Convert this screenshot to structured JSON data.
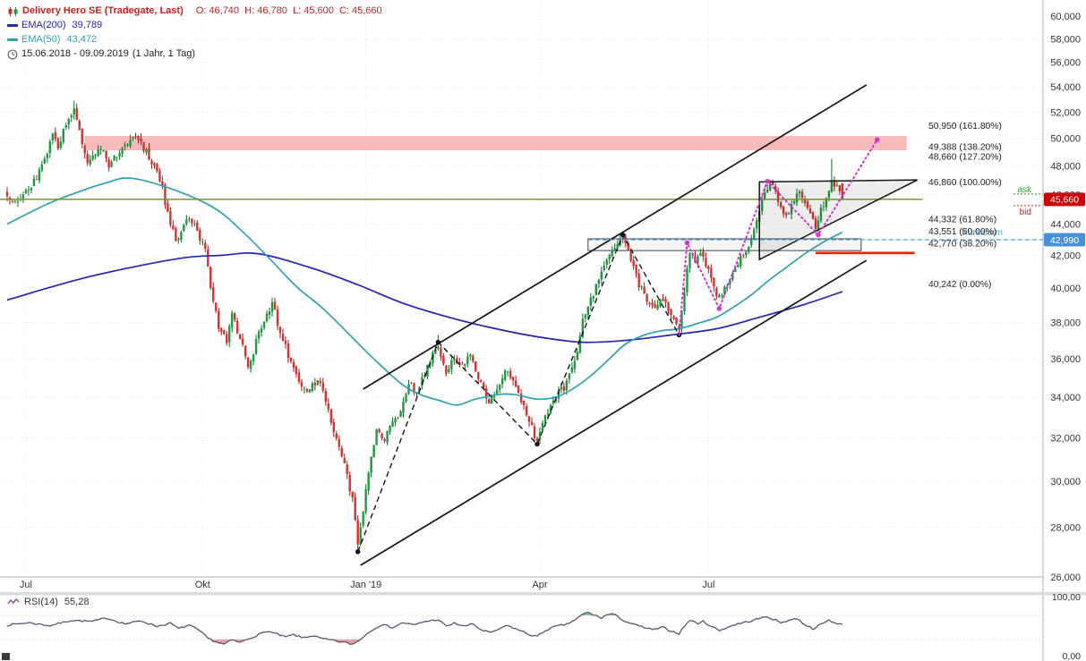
{
  "header": {
    "title": "Delivery Hero SE (Tradegate, Last)",
    "ohlc_text": "O: 46,740  H: 46,780  L: 45,600  C: 45,660",
    "ema200_label": "EMA(200)",
    "ema200_value": "39,789",
    "ema50_label": "EMA(50)",
    "ema50_value": "43,472",
    "period": "15.06.2018 - 09.09.2019",
    "period_detail": "(1 Jahr, 1 Tag)"
  },
  "colors": {
    "title_red": "#cc2020",
    "up": "#1e9b3e",
    "up_dark": "#0c6f28",
    "down": "#d23430",
    "down_dark": "#9e1f1c",
    "ema200": "#2424b4",
    "ema50": "#2fa0b6",
    "band": "#f6bcbc",
    "price_line": "#7d9a2d",
    "projection": "#d433d4",
    "alarm": "#4aa0e8",
    "stop": "#ee2000",
    "badge_last": "#cc0000",
    "badge_alarm": "#4a90d9",
    "ask": "#2ca02c",
    "bid": "#cc2222",
    "rsi_line": "#565673",
    "rsi_over": "#93cb93",
    "rsi_under": "#e9a0a0",
    "channel": "#151515",
    "grid": "#ebebeb",
    "axis_text": "#333333"
  },
  "chart_data": {
    "type": "candlestick",
    "scale": "log",
    "title": "Delivery Hero SE (Tradegate, Last)",
    "interval": "1 Tag",
    "period": "15.06.2018 - 09.09.2019",
    "days_total": 312,
    "last_candle": {
      "o": 46.74,
      "h": 46.78,
      "l": 45.6,
      "c": 45.66
    },
    "x_ticks": [
      {
        "day": 7,
        "label": "Jul"
      },
      {
        "day": 73,
        "label": "Okt"
      },
      {
        "day": 134,
        "label": "Jan '19"
      },
      {
        "day": 199,
        "label": "Apr"
      },
      {
        "day": 262,
        "label": "Jul"
      }
    ],
    "y_ticks": [
      {
        "v": 60,
        "label": "60,000"
      },
      {
        "v": 58,
        "label": "58,000"
      },
      {
        "v": 56,
        "label": "56,000"
      },
      {
        "v": 54,
        "label": "54,000"
      },
      {
        "v": 52,
        "label": "52,000"
      },
      {
        "v": 50,
        "label": "50,000"
      },
      {
        "v": 48,
        "label": "48,000"
      },
      {
        "v": 46,
        "label": "46,000"
      },
      {
        "v": 44,
        "label": "44,000"
      },
      {
        "v": 42,
        "label": "42,000"
      },
      {
        "v": 40,
        "label": "40,000"
      },
      {
        "v": 38,
        "label": "38,000"
      },
      {
        "v": 36,
        "label": "36,000"
      },
      {
        "v": 34,
        "label": "34,000"
      },
      {
        "v": 32,
        "label": "32,000"
      },
      {
        "v": 30,
        "label": "30,000"
      },
      {
        "v": 28,
        "label": "28,000"
      },
      {
        "v": 26,
        "label": "26,000"
      }
    ],
    "price_path": [
      [
        0,
        46.1
      ],
      [
        3,
        45.3
      ],
      [
        6,
        45.9
      ],
      [
        9,
        46.5
      ],
      [
        12,
        47.6
      ],
      [
        15,
        49.0
      ],
      [
        17,
        50.3
      ],
      [
        19,
        49.5
      ],
      [
        22,
        50.9
      ],
      [
        25,
        52.2
      ],
      [
        27,
        50.4
      ],
      [
        30,
        48.2
      ],
      [
        33,
        48.9
      ],
      [
        35,
        49.3
      ],
      [
        38,
        48.0
      ],
      [
        41,
        48.7
      ],
      [
        44,
        49.4
      ],
      [
        47,
        50.2
      ],
      [
        49,
        50.0
      ],
      [
        52,
        49.0
      ],
      [
        55,
        48.0
      ],
      [
        58,
        46.4
      ],
      [
        60,
        44.6
      ],
      [
        63,
        42.9
      ],
      [
        66,
        43.8
      ],
      [
        68,
        44.4
      ],
      [
        71,
        43.6
      ],
      [
        74,
        42.2
      ],
      [
        76,
        40.0
      ],
      [
        79,
        37.8
      ],
      [
        82,
        36.9
      ],
      [
        84,
        38.4
      ],
      [
        87,
        37.2
      ],
      [
        90,
        35.4
      ],
      [
        93,
        36.9
      ],
      [
        96,
        38.1
      ],
      [
        99,
        39.2
      ],
      [
        102,
        37.4
      ],
      [
        105,
        36.2
      ],
      [
        109,
        34.8
      ],
      [
        113,
        34.3
      ],
      [
        116,
        35.0
      ],
      [
        119,
        33.9
      ],
      [
        123,
        31.9
      ],
      [
        126,
        30.7
      ],
      [
        129,
        29.2
      ],
      [
        131,
        27.3
      ],
      [
        133,
        28.6
      ],
      [
        135,
        30.4
      ],
      [
        138,
        32.3
      ],
      [
        141,
        32.0
      ],
      [
        144,
        32.7
      ],
      [
        147,
        33.3
      ],
      [
        150,
        34.7
      ],
      [
        153,
        34.2
      ],
      [
        156,
        35.3
      ],
      [
        159,
        36.3
      ],
      [
        161,
        36.8
      ],
      [
        164,
        35.3
      ],
      [
        167,
        36.0
      ],
      [
        170,
        35.6
      ],
      [
        173,
        36.2
      ],
      [
        176,
        35.1
      ],
      [
        180,
        33.7
      ],
      [
        183,
        34.4
      ],
      [
        186,
        35.5
      ],
      [
        189,
        34.8
      ],
      [
        192,
        33.9
      ],
      [
        195,
        32.8
      ],
      [
        198,
        31.8
      ],
      [
        201,
        33.1
      ],
      [
        204,
        33.9
      ],
      [
        208,
        34.5
      ],
      [
        211,
        35.4
      ],
      [
        213,
        36.3
      ],
      [
        215,
        38.3
      ],
      [
        218,
        39.3
      ],
      [
        221,
        40.5
      ],
      [
        224,
        41.6
      ],
      [
        227,
        42.5
      ],
      [
        230,
        43.1
      ],
      [
        233,
        41.8
      ],
      [
        236,
        40.2
      ],
      [
        239,
        39.4
      ],
      [
        242,
        38.7
      ],
      [
        245,
        39.3
      ],
      [
        248,
        38.5
      ],
      [
        251,
        37.6
      ],
      [
        253,
        39.9
      ],
      [
        255,
        42.1
      ],
      [
        257,
        41.7
      ],
      [
        259,
        42.2
      ],
      [
        262,
        41.1
      ],
      [
        265,
        39.4
      ],
      [
        268,
        39.9
      ],
      [
        271,
        41.0
      ],
      [
        274,
        41.9
      ],
      [
        277,
        42.7
      ],
      [
        280,
        44.2
      ],
      [
        283,
        46.2
      ],
      [
        285,
        46.8
      ],
      [
        288,
        45.7
      ],
      [
        291,
        44.5
      ],
      [
        294,
        45.4
      ],
      [
        296,
        46.2
      ],
      [
        299,
        45.0
      ],
      [
        302,
        43.7
      ],
      [
        304,
        44.9
      ],
      [
        307,
        46.2
      ],
      [
        308,
        46.9
      ],
      [
        310,
        46.4
      ],
      [
        312,
        45.66
      ]
    ],
    "wick_overrides": [
      {
        "day": 25,
        "h": 52.9
      },
      {
        "day": 131,
        "l": 26.95
      },
      {
        "day": 161,
        "h": 37.3
      },
      {
        "day": 198,
        "l": 31.65
      },
      {
        "day": 230,
        "h": 43.35
      },
      {
        "day": 251,
        "l": 37.25
      },
      {
        "day": 285,
        "h": 47.0
      },
      {
        "day": 302,
        "l": 43.35
      },
      {
        "day": 308,
        "h": 48.5
      },
      {
        "day": 312,
        "o": 46.74,
        "h": 46.78,
        "l": 45.6,
        "c": 45.66
      }
    ],
    "ema200": {
      "label": "EMA(200)",
      "value": 39.789,
      "path": [
        [
          0,
          39.3
        ],
        [
          31,
          40.7
        ],
        [
          64,
          41.8
        ],
        [
          80,
          42.0
        ],
        [
          94,
          42.1
        ],
        [
          114,
          41.2
        ],
        [
          131,
          40.2
        ],
        [
          148,
          39.1
        ],
        [
          165,
          38.3
        ],
        [
          181,
          37.7
        ],
        [
          198,
          37.2
        ],
        [
          215,
          36.9
        ],
        [
          231,
          37.0
        ],
        [
          248,
          37.3
        ],
        [
          265,
          37.65
        ],
        [
          281,
          38.3
        ],
        [
          298,
          39.05
        ],
        [
          312,
          39.789
        ]
      ]
    },
    "ema50": {
      "label": "EMA(50)",
      "value": 43.472,
      "path": [
        [
          0,
          44.0
        ],
        [
          17,
          45.5
        ],
        [
          37,
          46.8
        ],
        [
          47,
          47.1
        ],
        [
          64,
          46.2
        ],
        [
          78,
          45.0
        ],
        [
          88,
          43.5
        ],
        [
          98,
          41.8
        ],
        [
          108,
          40.1
        ],
        [
          118,
          38.8
        ],
        [
          128,
          37.3
        ],
        [
          138,
          35.85
        ],
        [
          148,
          34.6
        ],
        [
          155,
          34.1
        ],
        [
          161,
          33.85
        ],
        [
          168,
          33.6
        ],
        [
          175,
          33.9
        ],
        [
          185,
          34.15
        ],
        [
          191,
          34.1
        ],
        [
          198,
          33.9
        ],
        [
          205,
          34.0
        ],
        [
          211,
          34.4
        ],
        [
          218,
          35.1
        ],
        [
          225,
          36.0
        ],
        [
          231,
          36.8
        ],
        [
          238,
          37.3
        ],
        [
          245,
          37.55
        ],
        [
          251,
          37.65
        ],
        [
          258,
          37.95
        ],
        [
          265,
          38.3
        ],
        [
          271,
          38.85
        ],
        [
          278,
          39.6
        ],
        [
          284,
          40.4
        ],
        [
          291,
          41.25
        ],
        [
          298,
          42.1
        ],
        [
          305,
          42.85
        ],
        [
          312,
          43.472
        ]
      ]
    },
    "overlays": {
      "channel": {
        "lower": [
          [
            132,
            26.46
          ],
          [
            321,
            41.69
          ]
        ],
        "upper": [
          [
            133,
            34.41
          ],
          [
            321,
            54.15
          ]
        ]
      },
      "dashed_zigzag": [
        [
          131,
          27.0
        ],
        [
          161,
          36.9
        ],
        [
          198,
          31.7
        ],
        [
          230,
          43.3
        ],
        [
          251,
          37.3
        ]
      ],
      "magenta_zigzag": [
        [
          251,
          37.3
        ],
        [
          254,
          42.8
        ],
        [
          266,
          38.8
        ],
        [
          284,
          46.9
        ],
        [
          303,
          43.3
        ],
        [
          325,
          49.9
        ]
      ],
      "resistance_band": {
        "from_day": 29,
        "to_day": 336,
        "price_top": 50.18,
        "price_bottom": 49.12
      },
      "rectangle": {
        "from_day": 217,
        "to_day": 319,
        "price_top": 43.05,
        "price_bottom": 42.3
      },
      "triangle": [
        [
          281,
          46.86
        ],
        [
          340,
          47.0
        ],
        [
          281,
          41.74
        ]
      ],
      "current_price_line": {
        "price": 45.66,
        "to_day": 342
      },
      "alarm_line": {
        "price": 42.99,
        "from_day": 217,
        "label": "Kursalarm"
      },
      "stop_line": {
        "price": 42.15,
        "from_day": 302,
        "to_day": 339
      },
      "fib_levels": [
        {
          "price": 50.95,
          "label": "50,950 (161.80%)"
        },
        {
          "price": 49.388,
          "label": "49,388 (138.20%)"
        },
        {
          "price": 48.66,
          "label": "48,660 (127.20%)"
        },
        {
          "price": 46.86,
          "label": "46,860 (100.00%)"
        },
        {
          "price": 44.332,
          "label": "44,332 (61.80%)"
        },
        {
          "price": 43.551,
          "label": "43,551 (50.00%)"
        },
        {
          "price": 42.77,
          "label": "42,770 (38.20%)"
        },
        {
          "price": 40.242,
          "label": "40,242 (0.00%)"
        }
      ]
    },
    "axis_badges": {
      "ask_label": "ask",
      "bid_label": "bid",
      "last_badge": "45,660",
      "alarm_badge": "42,990"
    },
    "rsi": {
      "label": "RSI(14)",
      "value": "55,28",
      "value_num": 55.28,
      "upper": 70,
      "lower": 30,
      "axis_top": "100,00",
      "axis_bottom": "0,00",
      "path": [
        [
          0,
          54
        ],
        [
          8,
          58
        ],
        [
          16,
          53
        ],
        [
          24,
          62
        ],
        [
          32,
          60
        ],
        [
          37,
          66
        ],
        [
          44,
          56
        ],
        [
          50,
          61
        ],
        [
          56,
          52
        ],
        [
          61,
          57
        ],
        [
          64,
          48
        ],
        [
          68,
          54
        ],
        [
          72,
          44
        ],
        [
          75,
          32
        ],
        [
          78,
          26
        ],
        [
          81,
          22
        ],
        [
          84,
          29
        ],
        [
          87,
          25
        ],
        [
          90,
          31
        ],
        [
          94,
          38
        ],
        [
          97,
          44
        ],
        [
          100,
          40
        ],
        [
          104,
          34
        ],
        [
          107,
          38
        ],
        [
          110,
          33
        ],
        [
          114,
          36
        ],
        [
          118,
          31
        ],
        [
          122,
          28
        ],
        [
          126,
          25
        ],
        [
          129,
          22
        ],
        [
          131,
          27
        ],
        [
          134,
          38
        ],
        [
          137,
          48
        ],
        [
          140,
          55
        ],
        [
          144,
          50
        ],
        [
          148,
          58
        ],
        [
          152,
          54
        ],
        [
          156,
          60
        ],
        [
          161,
          63
        ],
        [
          164,
          52
        ],
        [
          167,
          57
        ],
        [
          171,
          52
        ],
        [
          174,
          56
        ],
        [
          177,
          46
        ],
        [
          181,
          41
        ],
        [
          184,
          48
        ],
        [
          187,
          53
        ],
        [
          191,
          46
        ],
        [
          195,
          38
        ],
        [
          198,
          35
        ],
        [
          201,
          45
        ],
        [
          205,
          52
        ],
        [
          209,
          55
        ],
        [
          213,
          65
        ],
        [
          215,
          72
        ],
        [
          217,
          75
        ],
        [
          219,
          71
        ],
        [
          222,
          66
        ],
        [
          224,
          71
        ],
        [
          226,
          73
        ],
        [
          228,
          68
        ],
        [
          231,
          60
        ],
        [
          234,
          55
        ],
        [
          238,
          50
        ],
        [
          241,
          46
        ],
        [
          245,
          50
        ],
        [
          248,
          44
        ],
        [
          251,
          40
        ],
        [
          253,
          52
        ],
        [
          255,
          62
        ],
        [
          258,
          57
        ],
        [
          260,
          60
        ],
        [
          263,
          52
        ],
        [
          266,
          45
        ],
        [
          269,
          50
        ],
        [
          272,
          55
        ],
        [
          275,
          58
        ],
        [
          278,
          61
        ],
        [
          281,
          65
        ],
        [
          284,
          68
        ],
        [
          286,
          64
        ],
        [
          289,
          58
        ],
        [
          292,
          62
        ],
        [
          295,
          65
        ],
        [
          298,
          55
        ],
        [
          301,
          48
        ],
        [
          304,
          55
        ],
        [
          307,
          62
        ],
        [
          309,
          58
        ],
        [
          312,
          55.28
        ]
      ]
    }
  }
}
